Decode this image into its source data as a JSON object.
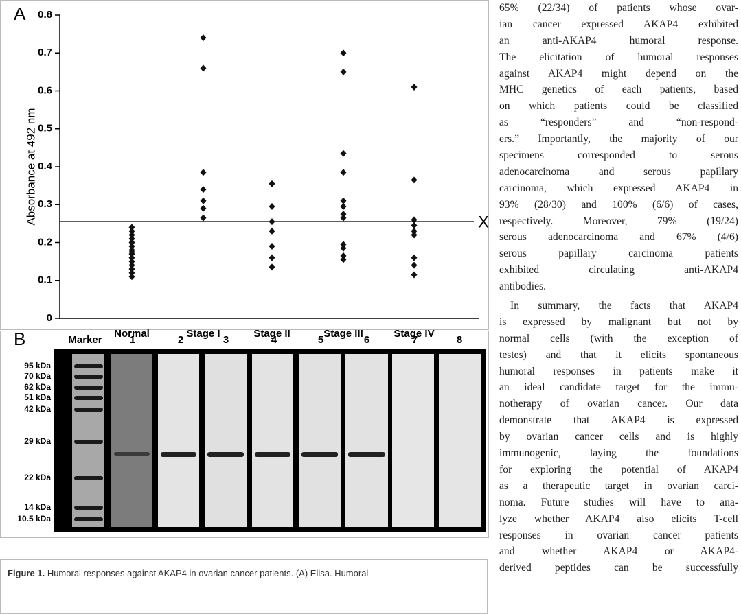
{
  "chart_data": {
    "type": "strip",
    "panel": "A",
    "ylabel": "Absorbance at 492 nm",
    "categories": [
      "Normal",
      "Stage I",
      "Stage II",
      "Stage III",
      "Stage IV"
    ],
    "values": [
      [
        0.11,
        0.12,
        0.13,
        0.14,
        0.15,
        0.16,
        0.17,
        0.175,
        0.18,
        0.19,
        0.2,
        0.21,
        0.22,
        0.23,
        0.24
      ],
      [
        0.74,
        0.66,
        0.385,
        0.34,
        0.31,
        0.29,
        0.265
      ],
      [
        0.355,
        0.295,
        0.255,
        0.23,
        0.19,
        0.16,
        0.135
      ],
      [
        0.7,
        0.65,
        0.435,
        0.385,
        0.31,
        0.295,
        0.275,
        0.265,
        0.195,
        0.185,
        0.165,
        0.155
      ],
      [
        0.61,
        0.365,
        0.26,
        0.245,
        0.23,
        0.22,
        0.16,
        0.14,
        0.115
      ]
    ],
    "color": "#111111",
    "threshold": {
      "value": 0.255,
      "label": "X"
    },
    "ylim": [
      0,
      0.8
    ],
    "yticks": [
      0,
      0.1,
      0.2,
      0.3,
      0.4,
      0.5,
      0.6,
      0.7,
      0.8
    ]
  },
  "blot": {
    "panel": "B",
    "lanes": [
      "Marker",
      "1",
      "2",
      "3",
      "4",
      "5",
      "6",
      "7",
      "8"
    ],
    "markers": [
      "95 kDa",
      "70 kDa",
      "62 kDa",
      "51 kDa",
      "42 kDa",
      "29 kDa",
      "22 kDa",
      "14 kDa",
      "10.5 kDa"
    ]
  },
  "caption": {
    "label": "Figure 1.",
    "text": "Humoral responses against AKAP4 in ovarian cancer patients. (A) Elisa. Humoral"
  },
  "body": {
    "paragraphs": [
      [
        "65% (22/34) of patients whose ovar-",
        "ian cancer expressed AKAP4 exhibited",
        "an anti-AKAP4 humoral response.",
        "The elicitation of humoral responses",
        "against AKAP4 might depend on the",
        "MHC genetics of each patients, based",
        "on which patients could be classified",
        "as “responders” and “non-respond-",
        "ers.” Importantly, the majority of our",
        "specimens corresponded to serous",
        "adenocarcinoma and serous papillary",
        "carcinoma, which expressed AKAP4 in",
        "93% (28/30) and 100% (6/6) of cases,",
        "respectively. Moreover, 79% (19/24)",
        "serous adenocarcinoma and 67% (4/6)",
        "serous papillary carcinoma patients",
        "exhibited circulating anti-AKAP4",
        "antibodies."
      ],
      [
        "In summary, the facts that AKAP4",
        "is expressed by malignant but not by",
        "normal cells (with the exception of",
        "testes) and that it elicits spontaneous",
        "humoral responses in patients make it",
        "an ideal candidate target for the immu-",
        "notherapy of ovarian cancer. Our data",
        "demonstrate that AKAP4 is expressed",
        "by ovarian cancer cells and is highly",
        "immunogenic, laying the foundations",
        "for exploring the potential of AKAP4",
        "as a therapeutic target in ovarian carci-",
        "noma. Future studies will have to ana-",
        "lyze whether AKAP4 also elicits T-cell",
        "responses in ovarian cancer patients",
        "and whether AKAP4 or AKAP4-",
        "derived peptides can be successfully"
      ]
    ]
  }
}
